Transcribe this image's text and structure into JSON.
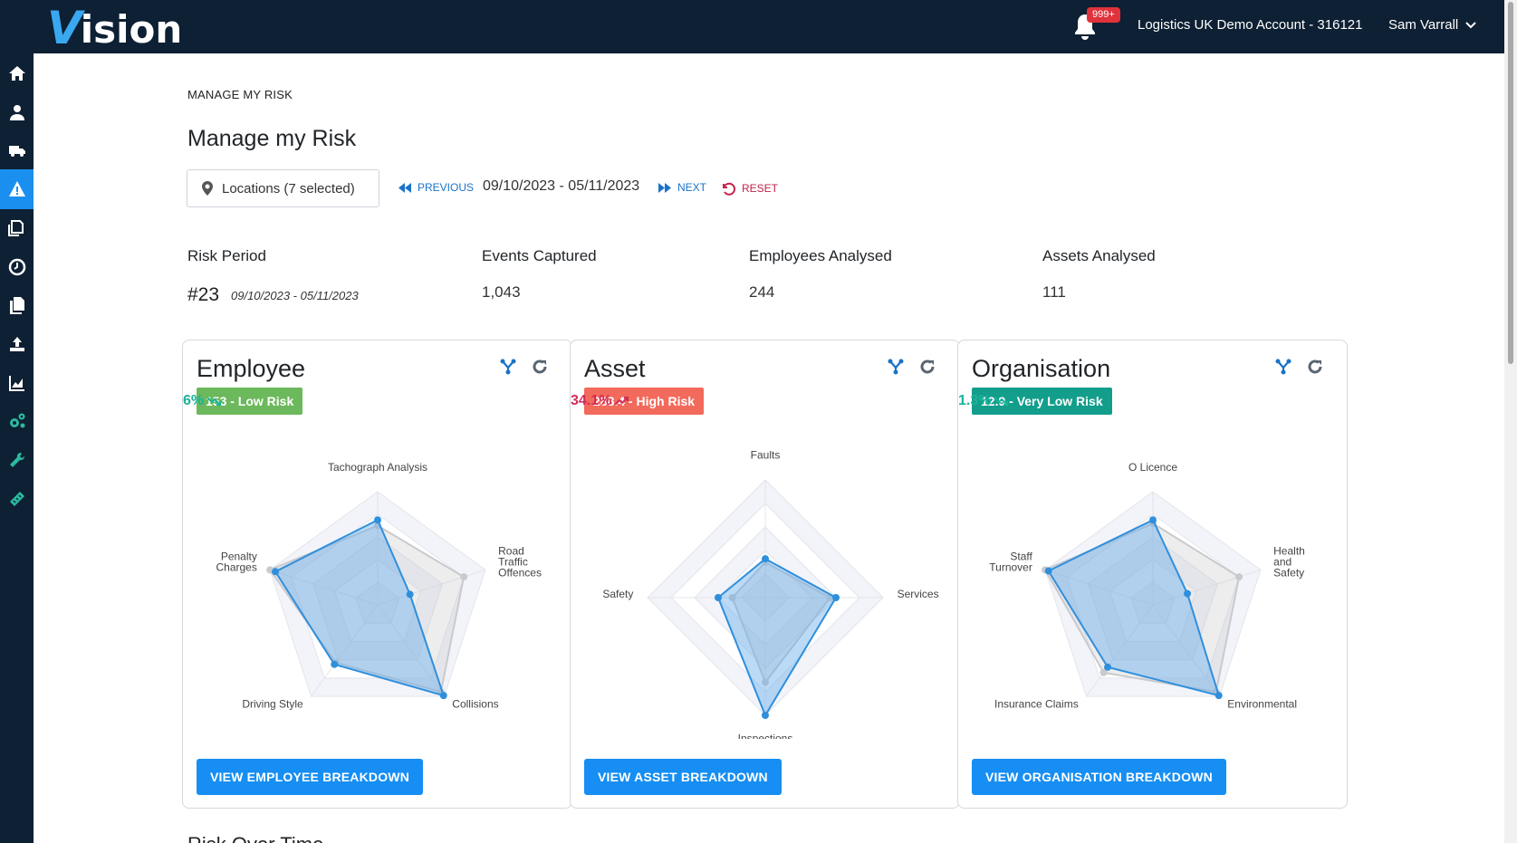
{
  "app": {
    "logo_v": "V",
    "logo_rest": "ision"
  },
  "header": {
    "notification_count": "999+",
    "account": "Logistics UK Demo Account - 316121",
    "user": "Sam Varrall"
  },
  "sidebar": {
    "items": [
      {
        "icon": "home-icon"
      },
      {
        "icon": "user-icon"
      },
      {
        "icon": "truck-icon"
      },
      {
        "icon": "warning-icon",
        "active": true
      },
      {
        "icon": "documents-icon"
      },
      {
        "icon": "clock-icon"
      },
      {
        "icon": "files-icon"
      },
      {
        "icon": "upload-icon"
      },
      {
        "icon": "chart-icon"
      },
      {
        "icon": "gears-icon"
      },
      {
        "icon": "wrench-icon"
      },
      {
        "icon": "ruler-icon"
      }
    ]
  },
  "page": {
    "breadcrumb": "MANAGE MY RISK",
    "title": "Manage my Risk",
    "locations": "Locations (7 selected)",
    "previous": "PREVIOUS",
    "date_range": "09/10/2023 - 05/11/2023",
    "next": "NEXT",
    "reset": "RESET",
    "next_section": "Risk Over Time"
  },
  "stats": {
    "risk_period_label": "Risk Period",
    "risk_period_number": "#23",
    "risk_period_dates": "09/10/2023 - 05/11/2023",
    "events_label": "Events Captured",
    "events_value": "1,043",
    "employees_label": "Employees Analysed",
    "employees_value": "244",
    "assets_label": "Assets Analysed",
    "assets_value": "111"
  },
  "colors": {
    "accent": "#168ef3",
    "low_risk": "#6cb85c",
    "high_risk": "#f26a5b",
    "very_low_risk": "#139e8c",
    "trend_down": "#1bb39a",
    "trend_up": "#d22c57"
  },
  "cards": [
    {
      "title": "Employee",
      "score_label": "153 - Low Risk",
      "score_color": "#6cb85c",
      "pct": "6%",
      "pct_color": "#1bb39a",
      "trend": "down",
      "button": "VIEW EMPLOYEE BREAKDOWN",
      "axes": [
        "Tachograph Analysis",
        "Road Traffic Offences",
        "Collisions",
        "Driving Style",
        "Penalty Charges"
      ],
      "current": [
        0.75,
        0.3,
        0.99,
        0.65,
        0.95
      ],
      "previous": [
        0.7,
        0.8,
        0.95,
        0.63,
        1.0
      ]
    },
    {
      "title": "Asset",
      "score_label": "288.4 - High Risk",
      "score_color": "#f26a5b",
      "pct": "34.1%",
      "pct_color": "#d22c57",
      "trend": "up",
      "button": "VIEW ASSET BREAKDOWN",
      "axes": [
        "Faults",
        "Services",
        "Inspections",
        "Safety"
      ],
      "current": [
        0.33,
        0.6,
        1.0,
        0.4
      ],
      "previous": [
        0.3,
        0.55,
        0.72,
        0.28
      ]
    },
    {
      "title": "Organisation",
      "score_label": "12.9 - Very Low Risk",
      "score_color": "#139e8c",
      "pct": "1.3%",
      "pct_color": "#1bb39a",
      "trend": "down",
      "button": "VIEW ORGANISATION BREAKDOWN",
      "axes": [
        "O Licence",
        "Health and Safety",
        "Environmental",
        "Insurance Claims",
        "Staff Turnover"
      ],
      "current": [
        0.75,
        0.32,
        0.99,
        0.68,
        0.97
      ],
      "previous": [
        0.72,
        0.8,
        0.95,
        0.74,
        1.0
      ]
    }
  ]
}
